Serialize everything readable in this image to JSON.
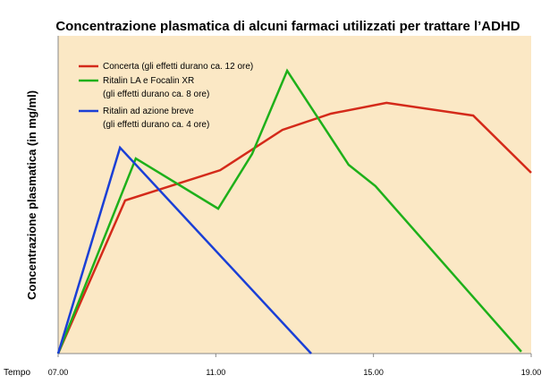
{
  "chart_data": {
    "type": "line",
    "title": "Concentrazione plasmatica di alcuni farmaci utilizzati per trattare l’ADHD",
    "y_label": "Concentrazione plasmatica (in mg/ml)",
    "x_label": "Tempo",
    "xlim": [
      7,
      19
    ],
    "xticks": [
      {
        "value": 7,
        "label": "07.00"
      },
      {
        "value": 11,
        "label": "11.00"
      },
      {
        "value": 15,
        "label": "15.00"
      },
      {
        "value": 19,
        "label": "19.00"
      }
    ],
    "ylim": [
      0,
      100
    ],
    "background": "#fbe8c5",
    "series": [
      {
        "name": "Concerta (gli effetti durano ca. 12 ore)",
        "color": "#d42a1a",
        "x": [
          7,
          8.7,
          11.11,
          12.69,
          13.92,
          15.33,
          17.53,
          19
        ],
        "values": [
          0,
          48.2,
          57.7,
          70.4,
          75.5,
          78.9,
          74.9,
          56.9
        ]
      },
      {
        "name": "Ritalin LA e Focalin XR\n(gli effetti durano ca. 8 ore)",
        "color": "#1eb01a",
        "x": [
          7,
          8.97,
          11.06,
          11.92,
          12.81,
          14.37,
          15.05,
          18.75
        ],
        "values": [
          0,
          61.4,
          45.6,
          62.8,
          89,
          59.4,
          52.7,
          0.6
        ]
      },
      {
        "name": "Ritalin ad azione breve\n(gli effetti durano ca. 4 ore)",
        "color": "#1a3fd6",
        "x": [
          7,
          8.57,
          13.42
        ],
        "values": [
          0,
          64.8,
          0
        ]
      }
    ]
  }
}
